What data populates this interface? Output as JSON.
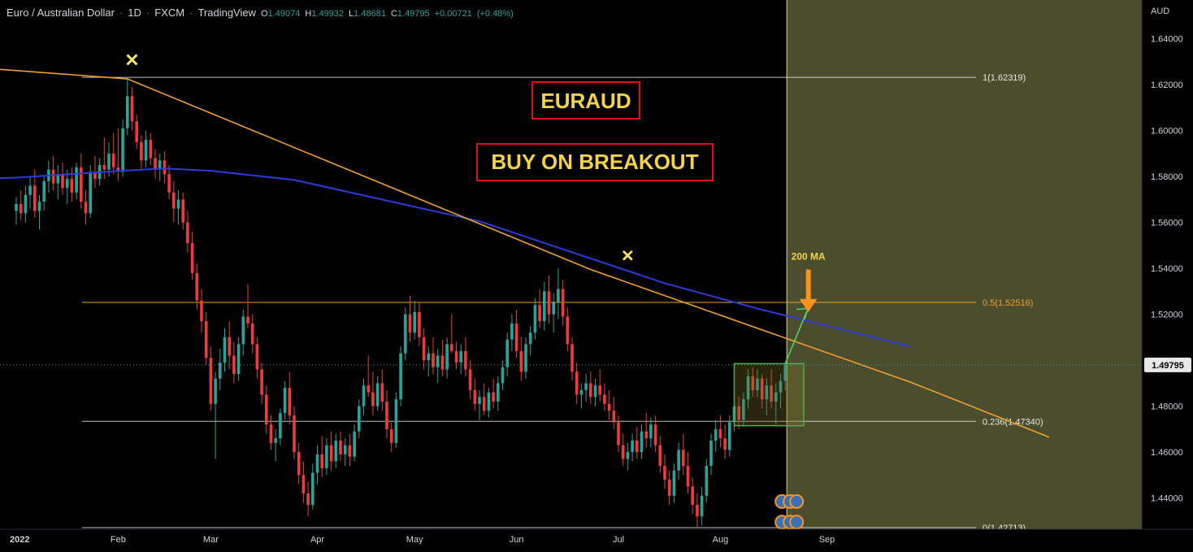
{
  "header": {
    "symbol": "Euro / Australian Dollar",
    "interval": "1D",
    "exchange": "FXCM",
    "source": "TradingView",
    "open_label": "O",
    "open": "1.49074",
    "high_label": "H",
    "high": "1.49932",
    "low_label": "L",
    "low": "1.48681",
    "close_label": "C",
    "close": "1.49795",
    "change": "+0.00721",
    "change_pct": "(+0.48%)"
  },
  "currency": "AUD",
  "annotations": {
    "title": "EURAUD",
    "subtitle": "BUY ON BREAKOUT",
    "ma_label": "200 MA",
    "top_marker": "✕",
    "mid_marker": "✕"
  },
  "colors": {
    "background": "#000000",
    "up": "#26a69a",
    "down": "#ef3b3b",
    "ma": "#2f3bd9",
    "trendline": "#f0a030",
    "fib_orange": "#f0a030",
    "fib_white": "#e0e0e0",
    "shade": "#4c4d2f",
    "box": "#4caf50",
    "arrow": "#f7931e",
    "title_text": "#f4d34b",
    "title_border": "#e01010",
    "price_tag_bg": "#e8e8e8",
    "marker": "#f6e46a"
  },
  "chart_data": {
    "type": "candlestick",
    "ylim": [
      1.425,
      1.648
    ],
    "y_ticks": [
      "1.64000",
      "1.62000",
      "1.60000",
      "1.58000",
      "1.56000",
      "1.54000",
      "1.52000",
      "1.48000",
      "1.46000",
      "1.44000"
    ],
    "x_ticks": [
      {
        "label": "2022",
        "day": 0
      },
      {
        "label": "Feb",
        "day": 22
      },
      {
        "label": "Mar",
        "day": 42
      },
      {
        "label": "Apr",
        "day": 65
      },
      {
        "label": "May",
        "day": 86
      },
      {
        "label": "Jun",
        "day": 108
      },
      {
        "label": "Jul",
        "day": 130
      },
      {
        "label": "Aug",
        "day": 152
      },
      {
        "label": "Sep",
        "day": 175
      }
    ],
    "current_price": "1.49795",
    "fib_levels": [
      {
        "label": "1(1.62319)",
        "value": 1.62319,
        "style": "white"
      },
      {
        "label": "0.5(1.52516)",
        "value": 1.52516,
        "style": "orange"
      },
      {
        "label": "0.236(1.47340)",
        "value": 1.4734,
        "style": "white"
      },
      {
        "label": "0(1.42713)",
        "value": 1.42713,
        "style": "white"
      }
    ],
    "trendline": [
      {
        "day": -9,
        "price": 1.6275
      },
      {
        "day": 24,
        "price": 1.6225
      },
      {
        "day": 124,
        "price": 1.5395
      },
      {
        "day": 193,
        "price": 1.4905
      },
      {
        "day": 223,
        "price": 1.4665
      }
    ],
    "ma200": [
      {
        "day": -24,
        "price": 1.578
      },
      {
        "day": 0,
        "price": 1.5795
      },
      {
        "day": 23,
        "price": 1.5825
      },
      {
        "day": 32,
        "price": 1.5835
      },
      {
        "day": 42,
        "price": 1.5825
      },
      {
        "day": 60,
        "price": 1.5785
      },
      {
        "day": 80,
        "price": 1.5695
      },
      {
        "day": 100,
        "price": 1.5605
      },
      {
        "day": 120,
        "price": 1.547
      },
      {
        "day": 140,
        "price": 1.5335
      },
      {
        "day": 160,
        "price": 1.5225
      },
      {
        "day": 180,
        "price": 1.5125
      },
      {
        "day": 193,
        "price": 1.506
      }
    ],
    "candles": [
      {
        "o": 1.565,
        "h": 1.571,
        "l": 1.559,
        "c": 1.568
      },
      {
        "o": 1.568,
        "h": 1.574,
        "l": 1.561,
        "c": 1.564
      },
      {
        "o": 1.564,
        "h": 1.576,
        "l": 1.56,
        "c": 1.572
      },
      {
        "o": 1.572,
        "h": 1.58,
        "l": 1.566,
        "c": 1.576
      },
      {
        "o": 1.576,
        "h": 1.583,
        "l": 1.562,
        "c": 1.565
      },
      {
        "o": 1.565,
        "h": 1.572,
        "l": 1.557,
        "c": 1.569
      },
      {
        "o": 1.569,
        "h": 1.58,
        "l": 1.565,
        "c": 1.578
      },
      {
        "o": 1.578,
        "h": 1.587,
        "l": 1.573,
        "c": 1.583
      },
      {
        "o": 1.583,
        "h": 1.589,
        "l": 1.574,
        "c": 1.577
      },
      {
        "o": 1.577,
        "h": 1.585,
        "l": 1.57,
        "c": 1.581
      },
      {
        "o": 1.581,
        "h": 1.586,
        "l": 1.572,
        "c": 1.575
      },
      {
        "o": 1.575,
        "h": 1.583,
        "l": 1.568,
        "c": 1.579
      },
      {
        "o": 1.579,
        "h": 1.584,
        "l": 1.569,
        "c": 1.573
      },
      {
        "o": 1.573,
        "h": 1.586,
        "l": 1.57,
        "c": 1.584
      },
      {
        "o": 1.584,
        "h": 1.59,
        "l": 1.566,
        "c": 1.569
      },
      {
        "o": 1.569,
        "h": 1.574,
        "l": 1.559,
        "c": 1.564
      },
      {
        "o": 1.564,
        "h": 1.585,
        "l": 1.562,
        "c": 1.582
      },
      {
        "o": 1.582,
        "h": 1.589,
        "l": 1.575,
        "c": 1.579
      },
      {
        "o": 1.579,
        "h": 1.588,
        "l": 1.576,
        "c": 1.585
      },
      {
        "o": 1.585,
        "h": 1.597,
        "l": 1.579,
        "c": 1.583
      },
      {
        "o": 1.583,
        "h": 1.595,
        "l": 1.58,
        "c": 1.59
      },
      {
        "o": 1.59,
        "h": 1.599,
        "l": 1.581,
        "c": 1.584
      },
      {
        "o": 1.584,
        "h": 1.601,
        "l": 1.578,
        "c": 1.582
      },
      {
        "o": 1.582,
        "h": 1.605,
        "l": 1.58,
        "c": 1.601
      },
      {
        "o": 1.601,
        "h": 1.623,
        "l": 1.598,
        "c": 1.615
      },
      {
        "o": 1.615,
        "h": 1.619,
        "l": 1.6,
        "c": 1.604
      },
      {
        "o": 1.604,
        "h": 1.607,
        "l": 1.592,
        "c": 1.595
      },
      {
        "o": 1.595,
        "h": 1.598,
        "l": 1.583,
        "c": 1.587
      },
      {
        "o": 1.587,
        "h": 1.6,
        "l": 1.584,
        "c": 1.596
      },
      {
        "o": 1.596,
        "h": 1.599,
        "l": 1.585,
        "c": 1.588
      },
      {
        "o": 1.588,
        "h": 1.592,
        "l": 1.579,
        "c": 1.583
      },
      {
        "o": 1.583,
        "h": 1.59,
        "l": 1.578,
        "c": 1.587
      },
      {
        "o": 1.587,
        "h": 1.591,
        "l": 1.577,
        "c": 1.581
      },
      {
        "o": 1.581,
        "h": 1.585,
        "l": 1.57,
        "c": 1.573
      },
      {
        "o": 1.573,
        "h": 1.578,
        "l": 1.56,
        "c": 1.566
      },
      {
        "o": 1.566,
        "h": 1.574,
        "l": 1.559,
        "c": 1.57
      },
      {
        "o": 1.57,
        "h": 1.573,
        "l": 1.557,
        "c": 1.56
      },
      {
        "o": 1.56,
        "h": 1.565,
        "l": 1.547,
        "c": 1.551
      },
      {
        "o": 1.551,
        "h": 1.556,
        "l": 1.535,
        "c": 1.538
      },
      {
        "o": 1.538,
        "h": 1.542,
        "l": 1.522,
        "c": 1.526
      },
      {
        "o": 1.526,
        "h": 1.531,
        "l": 1.512,
        "c": 1.517
      },
      {
        "o": 1.517,
        "h": 1.521,
        "l": 1.498,
        "c": 1.501
      },
      {
        "o": 1.501,
        "h": 1.506,
        "l": 1.478,
        "c": 1.481
      },
      {
        "o": 1.481,
        "h": 1.495,
        "l": 1.457,
        "c": 1.492
      },
      {
        "o": 1.492,
        "h": 1.505,
        "l": 1.487,
        "c": 1.499
      },
      {
        "o": 1.499,
        "h": 1.514,
        "l": 1.495,
        "c": 1.51
      },
      {
        "o": 1.51,
        "h": 1.517,
        "l": 1.496,
        "c": 1.502
      },
      {
        "o": 1.502,
        "h": 1.508,
        "l": 1.49,
        "c": 1.494
      },
      {
        "o": 1.494,
        "h": 1.51,
        "l": 1.491,
        "c": 1.507
      },
      {
        "o": 1.507,
        "h": 1.522,
        "l": 1.502,
        "c": 1.519
      },
      {
        "o": 1.519,
        "h": 1.533,
        "l": 1.514,
        "c": 1.516
      },
      {
        "o": 1.516,
        "h": 1.52,
        "l": 1.503,
        "c": 1.507
      },
      {
        "o": 1.507,
        "h": 1.51,
        "l": 1.492,
        "c": 1.496
      },
      {
        "o": 1.496,
        "h": 1.499,
        "l": 1.481,
        "c": 1.485
      },
      {
        "o": 1.485,
        "h": 1.489,
        "l": 1.468,
        "c": 1.472
      },
      {
        "o": 1.472,
        "h": 1.476,
        "l": 1.461,
        "c": 1.464
      },
      {
        "o": 1.464,
        "h": 1.47,
        "l": 1.456,
        "c": 1.466
      },
      {
        "o": 1.466,
        "h": 1.479,
        "l": 1.463,
        "c": 1.477
      },
      {
        "o": 1.477,
        "h": 1.491,
        "l": 1.474,
        "c": 1.488
      },
      {
        "o": 1.488,
        "h": 1.495,
        "l": 1.472,
        "c": 1.476
      },
      {
        "o": 1.476,
        "h": 1.48,
        "l": 1.457,
        "c": 1.46
      },
      {
        "o": 1.46,
        "h": 1.464,
        "l": 1.446,
        "c": 1.45
      },
      {
        "o": 1.45,
        "h": 1.456,
        "l": 1.438,
        "c": 1.442
      },
      {
        "o": 1.442,
        "h": 1.447,
        "l": 1.432,
        "c": 1.437
      },
      {
        "o": 1.437,
        "h": 1.455,
        "l": 1.435,
        "c": 1.451
      },
      {
        "o": 1.451,
        "h": 1.463,
        "l": 1.446,
        "c": 1.459
      },
      {
        "o": 1.459,
        "h": 1.467,
        "l": 1.449,
        "c": 1.453
      },
      {
        "o": 1.453,
        "h": 1.466,
        "l": 1.45,
        "c": 1.463
      },
      {
        "o": 1.463,
        "h": 1.469,
        "l": 1.452,
        "c": 1.456
      },
      {
        "o": 1.456,
        "h": 1.468,
        "l": 1.453,
        "c": 1.465
      },
      {
        "o": 1.465,
        "h": 1.469,
        "l": 1.456,
        "c": 1.459
      },
      {
        "o": 1.459,
        "h": 1.466,
        "l": 1.454,
        "c": 1.463
      },
      {
        "o": 1.463,
        "h": 1.468,
        "l": 1.454,
        "c": 1.458
      },
      {
        "o": 1.458,
        "h": 1.472,
        "l": 1.456,
        "c": 1.469
      },
      {
        "o": 1.469,
        "h": 1.483,
        "l": 1.466,
        "c": 1.48
      },
      {
        "o": 1.48,
        "h": 1.492,
        "l": 1.476,
        "c": 1.489
      },
      {
        "o": 1.489,
        "h": 1.502,
        "l": 1.484,
        "c": 1.486
      },
      {
        "o": 1.486,
        "h": 1.495,
        "l": 1.476,
        "c": 1.48
      },
      {
        "o": 1.48,
        "h": 1.493,
        "l": 1.478,
        "c": 1.49
      },
      {
        "o": 1.49,
        "h": 1.496,
        "l": 1.478,
        "c": 1.482
      },
      {
        "o": 1.482,
        "h": 1.487,
        "l": 1.466,
        "c": 1.47
      },
      {
        "o": 1.47,
        "h": 1.473,
        "l": 1.46,
        "c": 1.464
      },
      {
        "o": 1.464,
        "h": 1.486,
        "l": 1.462,
        "c": 1.483
      },
      {
        "o": 1.483,
        "h": 1.506,
        "l": 1.48,
        "c": 1.503
      },
      {
        "o": 1.503,
        "h": 1.523,
        "l": 1.5,
        "c": 1.52
      },
      {
        "o": 1.52,
        "h": 1.528,
        "l": 1.508,
        "c": 1.512
      },
      {
        "o": 1.512,
        "h": 1.526,
        "l": 1.509,
        "c": 1.521
      },
      {
        "o": 1.521,
        "h": 1.525,
        "l": 1.506,
        "c": 1.51
      },
      {
        "o": 1.51,
        "h": 1.514,
        "l": 1.496,
        "c": 1.5
      },
      {
        "o": 1.5,
        "h": 1.506,
        "l": 1.493,
        "c": 1.503
      },
      {
        "o": 1.503,
        "h": 1.51,
        "l": 1.494,
        "c": 1.497
      },
      {
        "o": 1.497,
        "h": 1.505,
        "l": 1.49,
        "c": 1.502
      },
      {
        "o": 1.502,
        "h": 1.509,
        "l": 1.493,
        "c": 1.496
      },
      {
        "o": 1.496,
        "h": 1.51,
        "l": 1.492,
        "c": 1.507
      },
      {
        "o": 1.507,
        "h": 1.52,
        "l": 1.503,
        "c": 1.504
      },
      {
        "o": 1.504,
        "h": 1.508,
        "l": 1.496,
        "c": 1.499
      },
      {
        "o": 1.499,
        "h": 1.507,
        "l": 1.494,
        "c": 1.504
      },
      {
        "o": 1.504,
        "h": 1.51,
        "l": 1.493,
        "c": 1.496
      },
      {
        "o": 1.496,
        "h": 1.5,
        "l": 1.483,
        "c": 1.487
      },
      {
        "o": 1.487,
        "h": 1.492,
        "l": 1.478,
        "c": 1.481
      },
      {
        "o": 1.481,
        "h": 1.487,
        "l": 1.474,
        "c": 1.484
      },
      {
        "o": 1.484,
        "h": 1.49,
        "l": 1.476,
        "c": 1.478
      },
      {
        "o": 1.478,
        "h": 1.488,
        "l": 1.475,
        "c": 1.486
      },
      {
        "o": 1.486,
        "h": 1.492,
        "l": 1.479,
        "c": 1.482
      },
      {
        "o": 1.482,
        "h": 1.493,
        "l": 1.478,
        "c": 1.49
      },
      {
        "o": 1.49,
        "h": 1.5,
        "l": 1.487,
        "c": 1.497
      },
      {
        "o": 1.497,
        "h": 1.512,
        "l": 1.493,
        "c": 1.509
      },
      {
        "o": 1.509,
        "h": 1.52,
        "l": 1.504,
        "c": 1.516
      },
      {
        "o": 1.516,
        "h": 1.522,
        "l": 1.501,
        "c": 1.504
      },
      {
        "o": 1.504,
        "h": 1.51,
        "l": 1.491,
        "c": 1.495
      },
      {
        "o": 1.495,
        "h": 1.51,
        "l": 1.492,
        "c": 1.507
      },
      {
        "o": 1.507,
        "h": 1.515,
        "l": 1.502,
        "c": 1.512
      },
      {
        "o": 1.512,
        "h": 1.527,
        "l": 1.509,
        "c": 1.524
      },
      {
        "o": 1.524,
        "h": 1.531,
        "l": 1.514,
        "c": 1.517
      },
      {
        "o": 1.517,
        "h": 1.534,
        "l": 1.513,
        "c": 1.53
      },
      {
        "o": 1.53,
        "h": 1.537,
        "l": 1.516,
        "c": 1.52
      },
      {
        "o": 1.52,
        "h": 1.529,
        "l": 1.512,
        "c": 1.525
      },
      {
        "o": 1.525,
        "h": 1.54,
        "l": 1.518,
        "c": 1.531
      },
      {
        "o": 1.531,
        "h": 1.535,
        "l": 1.515,
        "c": 1.519
      },
      {
        "o": 1.519,
        "h": 1.523,
        "l": 1.504,
        "c": 1.507
      },
      {
        "o": 1.507,
        "h": 1.51,
        "l": 1.491,
        "c": 1.495
      },
      {
        "o": 1.495,
        "h": 1.499,
        "l": 1.481,
        "c": 1.485
      },
      {
        "o": 1.485,
        "h": 1.49,
        "l": 1.479,
        "c": 1.487
      },
      {
        "o": 1.487,
        "h": 1.494,
        "l": 1.482,
        "c": 1.49
      },
      {
        "o": 1.49,
        "h": 1.495,
        "l": 1.481,
        "c": 1.484
      },
      {
        "o": 1.484,
        "h": 1.492,
        "l": 1.48,
        "c": 1.489
      },
      {
        "o": 1.489,
        "h": 1.496,
        "l": 1.482,
        "c": 1.485
      },
      {
        "o": 1.485,
        "h": 1.49,
        "l": 1.478,
        "c": 1.481
      },
      {
        "o": 1.481,
        "h": 1.487,
        "l": 1.474,
        "c": 1.478
      },
      {
        "o": 1.478,
        "h": 1.484,
        "l": 1.47,
        "c": 1.473
      },
      {
        "o": 1.473,
        "h": 1.476,
        "l": 1.46,
        "c": 1.463
      },
      {
        "o": 1.463,
        "h": 1.468,
        "l": 1.454,
        "c": 1.457
      },
      {
        "o": 1.457,
        "h": 1.464,
        "l": 1.452,
        "c": 1.46
      },
      {
        "o": 1.46,
        "h": 1.468,
        "l": 1.456,
        "c": 1.465
      },
      {
        "o": 1.465,
        "h": 1.471,
        "l": 1.457,
        "c": 1.46
      },
      {
        "o": 1.46,
        "h": 1.472,
        "l": 1.457,
        "c": 1.469
      },
      {
        "o": 1.469,
        "h": 1.477,
        "l": 1.462,
        "c": 1.466
      },
      {
        "o": 1.466,
        "h": 1.475,
        "l": 1.462,
        "c": 1.472
      },
      {
        "o": 1.472,
        "h": 1.476,
        "l": 1.46,
        "c": 1.463
      },
      {
        "o": 1.463,
        "h": 1.467,
        "l": 1.451,
        "c": 1.454
      },
      {
        "o": 1.454,
        "h": 1.459,
        "l": 1.444,
        "c": 1.448
      },
      {
        "o": 1.448,
        "h": 1.452,
        "l": 1.437,
        "c": 1.441
      },
      {
        "o": 1.441,
        "h": 1.455,
        "l": 1.438,
        "c": 1.452
      },
      {
        "o": 1.452,
        "h": 1.464,
        "l": 1.448,
        "c": 1.461
      },
      {
        "o": 1.461,
        "h": 1.468,
        "l": 1.45,
        "c": 1.454
      },
      {
        "o": 1.454,
        "h": 1.46,
        "l": 1.442,
        "c": 1.445
      },
      {
        "o": 1.445,
        "h": 1.449,
        "l": 1.433,
        "c": 1.437
      },
      {
        "o": 1.437,
        "h": 1.442,
        "l": 1.427,
        "c": 1.432
      },
      {
        "o": 1.432,
        "h": 1.445,
        "l": 1.428,
        "c": 1.441
      },
      {
        "o": 1.441,
        "h": 1.457,
        "l": 1.438,
        "c": 1.454
      },
      {
        "o": 1.454,
        "h": 1.468,
        "l": 1.45,
        "c": 1.465
      },
      {
        "o": 1.465,
        "h": 1.474,
        "l": 1.46,
        "c": 1.47
      },
      {
        "o": 1.47,
        "h": 1.476,
        "l": 1.462,
        "c": 1.466
      },
      {
        "o": 1.466,
        "h": 1.472,
        "l": 1.457,
        "c": 1.461
      },
      {
        "o": 1.461,
        "h": 1.476,
        "l": 1.458,
        "c": 1.473
      },
      {
        "o": 1.473,
        "h": 1.483,
        "l": 1.469,
        "c": 1.48
      },
      {
        "o": 1.48,
        "h": 1.484,
        "l": 1.47,
        "c": 1.474
      },
      {
        "o": 1.474,
        "h": 1.486,
        "l": 1.471,
        "c": 1.483
      },
      {
        "o": 1.483,
        "h": 1.496,
        "l": 1.479,
        "c": 1.493
      },
      {
        "o": 1.493,
        "h": 1.497,
        "l": 1.484,
        "c": 1.487
      },
      {
        "o": 1.487,
        "h": 1.496,
        "l": 1.484,
        "c": 1.492
      },
      {
        "o": 1.492,
        "h": 1.494,
        "l": 1.479,
        "c": 1.483
      },
      {
        "o": 1.483,
        "h": 1.492,
        "l": 1.476,
        "c": 1.489
      },
      {
        "o": 1.489,
        "h": 1.496,
        "l": 1.479,
        "c": 1.482
      },
      {
        "o": 1.482,
        "h": 1.49,
        "l": 1.472,
        "c": 1.486
      },
      {
        "o": 1.486,
        "h": 1.494,
        "l": 1.479,
        "c": 1.491
      },
      {
        "o": 1.491,
        "h": 1.499,
        "l": 1.487,
        "c": 1.498
      }
    ]
  }
}
